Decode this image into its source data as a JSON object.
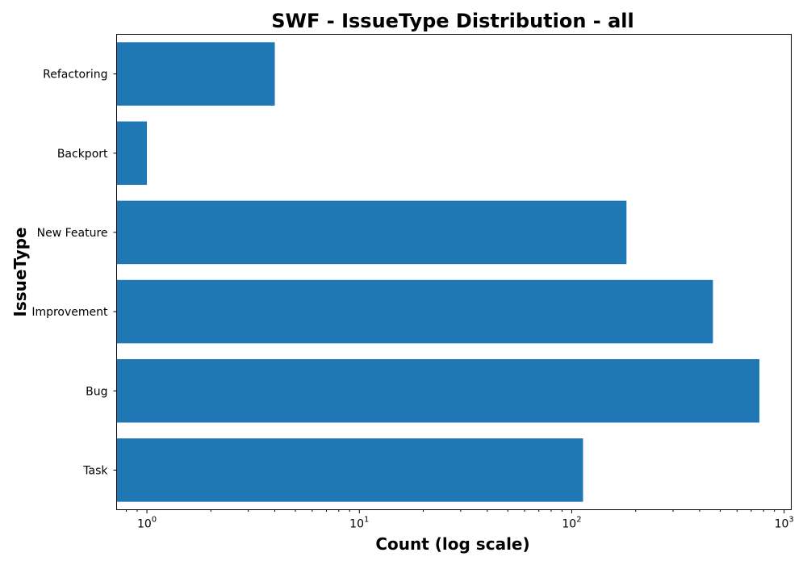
{
  "chart_data": {
    "type": "bar",
    "orientation": "horizontal",
    "title": "SWF - IssueType Distribution - all",
    "xlabel": "Count (log scale)",
    "ylabel": "IssueType",
    "x_scale": "log",
    "xlim": [
      0.72,
      1080
    ],
    "categories": [
      "Task",
      "Bug",
      "Improvement",
      "New Feature",
      "Backport",
      "Refactoring"
    ],
    "values": [
      113,
      765,
      462,
      181,
      1,
      4
    ],
    "x_ticks": [
      {
        "base": "10",
        "exp": "0",
        "value": 1
      },
      {
        "base": "10",
        "exp": "1",
        "value": 10
      },
      {
        "base": "10",
        "exp": "2",
        "value": 100
      },
      {
        "base": "10",
        "exp": "3",
        "value": 1000
      }
    ],
    "bar_color": "#1f77b4",
    "grid": false,
    "legend": "none"
  }
}
